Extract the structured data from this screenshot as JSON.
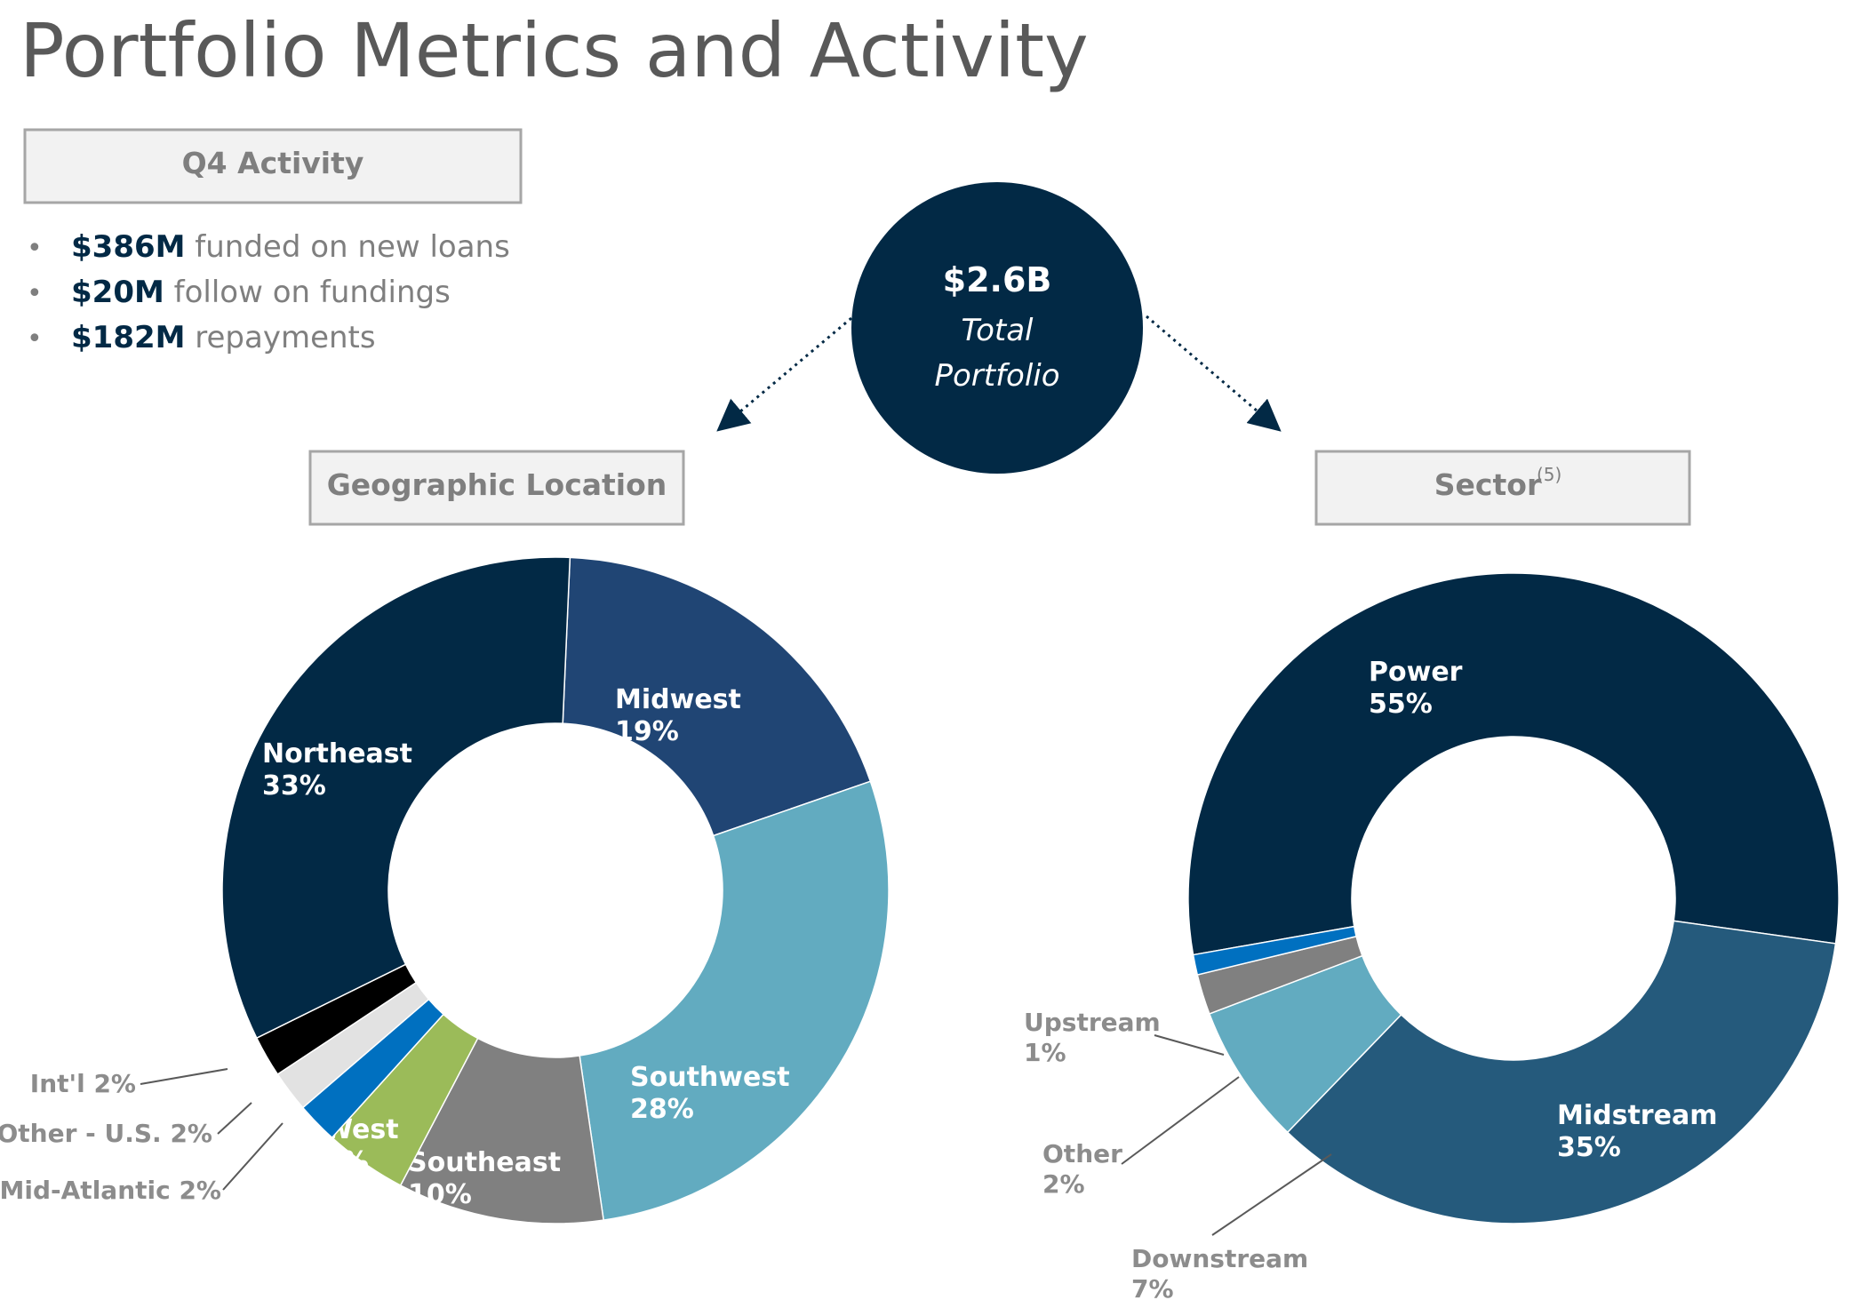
{
  "page": {
    "title": "Portfolio Metrics and Activity"
  },
  "activity": {
    "box_label": "Q4 Activity",
    "bullets": [
      {
        "amount": "$386M",
        "text": "funded on new loans"
      },
      {
        "amount": "$20M",
        "text": "follow on fundings"
      },
      {
        "amount": "$182M",
        "text": "repayments"
      }
    ]
  },
  "total": {
    "amount": "$2.6B",
    "line1": "Total",
    "line2": "Portfolio"
  },
  "geo_header": {
    "label": "Geographic Location"
  },
  "sector_header": {
    "label": "Sector",
    "footnote": "(5)"
  },
  "colors": {
    "navy": "#022945",
    "blue": "#204574",
    "lightblue": "#62abc0",
    "gray": "#808080",
    "green": "#9bbb59",
    "brightblue": "#0070c0",
    "lightgray": "#e2e2e2",
    "black": "#000000",
    "steel": "#255a7c"
  },
  "chart_data": [
    {
      "type": "pie",
      "title": "Geographic Location",
      "donut": true,
      "slices": [
        {
          "name": "Midwest",
          "value": 19,
          "label": "19%",
          "color": "#204574"
        },
        {
          "name": "Southwest",
          "value": 28,
          "label": "28%",
          "color": "#62abc0"
        },
        {
          "name": "Southeast",
          "value": 10,
          "label": "10%",
          "color": "#808080"
        },
        {
          "name": "West",
          "value": 4,
          "label": "4%",
          "color": "#9bbb59"
        },
        {
          "name": "Mid-Atlantic",
          "value": 2,
          "label": "2%",
          "color": "#0070c0"
        },
        {
          "name": "Other - U.S.",
          "value": 2,
          "label": "2%",
          "color": "#e2e2e2"
        },
        {
          "name": "Int'l",
          "value": 2,
          "label": "2%",
          "color": "#000000"
        },
        {
          "name": "Northeast",
          "value": 33,
          "label": "33%",
          "color": "#022945"
        }
      ]
    },
    {
      "type": "pie",
      "title": "Sector",
      "donut": true,
      "slices": [
        {
          "name": "Power",
          "value": 55,
          "label": "55%",
          "color": "#022945"
        },
        {
          "name": "Midstream",
          "value": 35,
          "label": "35%",
          "color": "#255a7c"
        },
        {
          "name": "Downstream",
          "value": 7,
          "label": "7%",
          "color": "#62abc0"
        },
        {
          "name": "Other",
          "value": 2,
          "label": "2%",
          "color": "#808080"
        },
        {
          "name": "Upstream",
          "value": 1,
          "label": "1%",
          "color": "#0070c0"
        }
      ]
    }
  ]
}
